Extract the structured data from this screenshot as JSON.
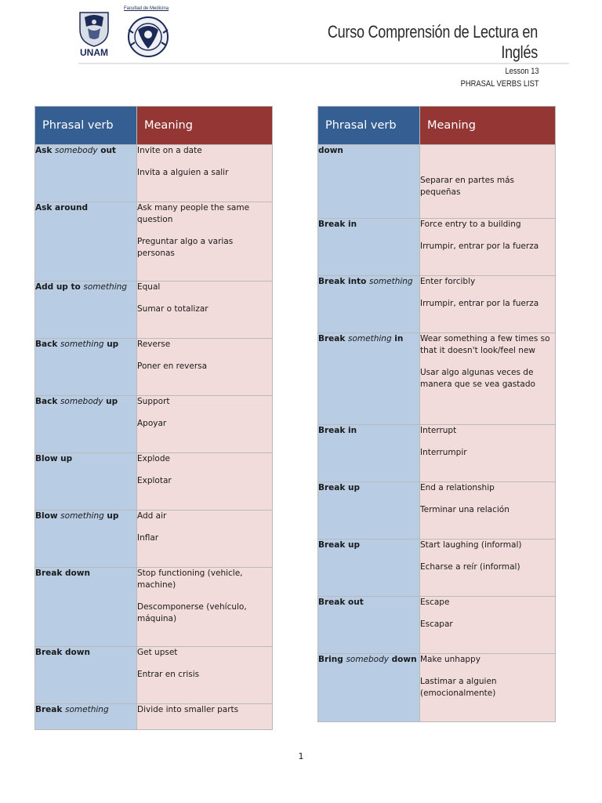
{
  "header": {
    "unam_label": "UNAM",
    "faculty_label": "Facultad de Medicina",
    "title_line1": "Curso Comprensión de Lectura en",
    "title_line2": "Inglés",
    "lesson": "Lesson 13",
    "subtitle": "PHRASAL VERBS LIST"
  },
  "table_header": {
    "col1": "Phrasal verb",
    "col2": "Meaning"
  },
  "left_rows": [
    {
      "verb": [
        {
          "t": "Ask ",
          "i": false
        },
        {
          "t": "somebody",
          "i": true
        },
        {
          "t": " out",
          "i": false
        }
      ],
      "en": "Invite on a date",
      "es": "Invita a alguien a salir"
    },
    {
      "verb": [
        {
          "t": "Ask around",
          "i": false
        }
      ],
      "en": "Ask many people the same question",
      "es": "Preguntar algo a varias personas"
    },
    {
      "verb": [
        {
          "t": "Add up to ",
          "i": false
        },
        {
          "t": "something",
          "i": true
        }
      ],
      "en": "Equal",
      "es": "Sumar o totalizar"
    },
    {
      "verb": [
        {
          "t": "Back ",
          "i": false
        },
        {
          "t": "something",
          "i": true
        },
        {
          "t": " up",
          "i": false
        }
      ],
      "en": "Reverse",
      "es": "Poner en reversa"
    },
    {
      "verb": [
        {
          "t": "Back ",
          "i": false
        },
        {
          "t": "somebody",
          "i": true
        },
        {
          "t": " up",
          "i": false
        }
      ],
      "en": "Support",
      "es": "Apoyar"
    },
    {
      "verb": [
        {
          "t": "Blow up",
          "i": false
        }
      ],
      "en": "Explode",
      "es": "Explotar"
    },
    {
      "verb": [
        {
          "t": "Blow ",
          "i": false
        },
        {
          "t": "something",
          "i": true
        },
        {
          "t": " up",
          "i": false
        }
      ],
      "en": "Add air",
      "es": "Inflar"
    },
    {
      "verb": [
        {
          "t": "Break down",
          "i": false
        }
      ],
      "en": "Stop functioning (vehicle, machine)",
      "es": "Descomponerse (vehículo, máquina)"
    },
    {
      "verb": [
        {
          "t": "Break down",
          "i": false
        }
      ],
      "en": "Get upset",
      "es": "Entrar en crisis"
    },
    {
      "verb": [
        {
          "t": "Break ",
          "i": false
        },
        {
          "t": "something",
          "i": true
        }
      ],
      "en": "Divide into smaller parts",
      "es": ""
    }
  ],
  "right_rows": [
    {
      "verb": [
        {
          "t": "down",
          "i": false
        }
      ],
      "en": "",
      "es": "Separar en partes más pequeñas"
    },
    {
      "verb": [
        {
          "t": "Break in",
          "i": false
        }
      ],
      "en": "Force entry to a building",
      "es": "Irrumpir, entrar por la fuerza"
    },
    {
      "verb": [
        {
          "t": "Break into ",
          "i": false
        },
        {
          "t": "something",
          "i": true
        }
      ],
      "en": "Enter forcibly",
      "es": "Irrumpir, entrar por la fuerza"
    },
    {
      "verb": [
        {
          "t": "Break ",
          "i": false
        },
        {
          "t": "something",
          "i": true
        },
        {
          "t": " in",
          "i": false
        }
      ],
      "en": "Wear something a few times so that it doesn't look/feel new",
      "es": "Usar algo algunas veces de manera que se vea gastado"
    },
    {
      "verb": [
        {
          "t": "Break in",
          "i": false
        }
      ],
      "en": "Interrupt",
      "es": "Interrumpir"
    },
    {
      "verb": [
        {
          "t": "Break up",
          "i": false
        }
      ],
      "en": "End a relationship",
      "es": "Terminar una relación"
    },
    {
      "verb": [
        {
          "t": "Break up",
          "i": false
        }
      ],
      "en": "Start laughing (informal)",
      "es": "Echarse a reír (informal)"
    },
    {
      "verb": [
        {
          "t": "Break out",
          "i": false
        }
      ],
      "en": "Escape",
      "es": "Escapar"
    },
    {
      "verb": [
        {
          "t": "Bring ",
          "i": false
        },
        {
          "t": "somebody",
          "i": true
        },
        {
          "t": " down",
          "i": false
        }
      ],
      "en": "Make unhappy",
      "es": "Lastimar a alguien (emocionalmente)"
    }
  ],
  "page_number": "1"
}
